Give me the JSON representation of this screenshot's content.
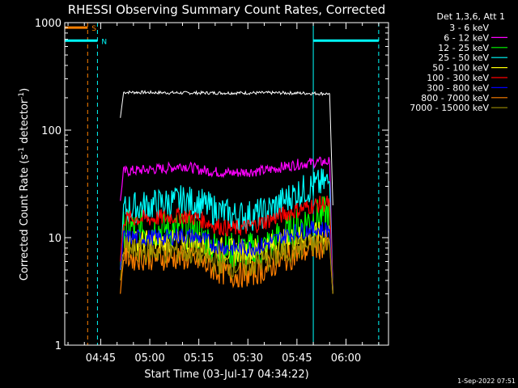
{
  "chart_data": {
    "type": "line",
    "title": "RHESSI Observing Summary Count Rates, Corrected",
    "xlabel": "Start Time (03-Jul-17 04:34:22)",
    "ylabel_parts": [
      "Corrected Count Rate (s",
      "-1",
      " detector",
      "-1",
      ")"
    ],
    "yscale": "log",
    "ylim": [
      1,
      1000
    ],
    "xlim": [
      "04:34",
      "06:13"
    ],
    "x_ticks": [
      "04:45",
      "05:00",
      "05:15",
      "05:30",
      "05:45",
      "06:00"
    ],
    "y_ticks": [
      "1",
      "10",
      "100",
      "1000"
    ],
    "legend_header": "Det 1,3,6, Att 1",
    "legend_position": "top-right",
    "series": [
      {
        "name": "3 - 6 keV",
        "color": "#000000",
        "x": [
          "04:51",
          "04:52",
          "04:55",
          "05:00",
          "05:10",
          "05:20",
          "05:30",
          "05:40",
          "05:50",
          "05:55",
          "05:56"
        ],
        "y": [
          130,
          225,
          225,
          224,
          222,
          222,
          222,
          222,
          220,
          218,
          20
        ]
      },
      {
        "name": "6 - 12 keV",
        "color": "#ff00ff",
        "x": [
          "04:51",
          "04:52",
          "04:55",
          "05:00",
          "05:05",
          "05:10",
          "05:15",
          "05:20",
          "05:25",
          "05:30",
          "05:35",
          "05:40",
          "05:45",
          "05:50",
          "05:55",
          "05:56"
        ],
        "y": [
          22,
          41,
          42,
          43,
          44,
          47,
          43,
          41,
          40,
          41,
          42,
          45,
          48,
          50,
          51,
          3
        ]
      },
      {
        "name": "12 - 25 keV",
        "color": "#00ff00",
        "x": [
          "04:51",
          "04:52",
          "04:55",
          "05:00",
          "05:05",
          "05:10",
          "05:15",
          "05:20",
          "05:25",
          "05:30",
          "05:35",
          "05:40",
          "05:45",
          "05:50",
          "05:55",
          "05:56"
        ],
        "y": [
          5,
          12,
          12,
          12,
          12,
          12,
          11,
          8,
          7.5,
          7.5,
          8,
          10,
          13,
          15,
          17,
          3
        ]
      },
      {
        "name": "25 - 50 keV",
        "color": "#00ffff",
        "x": [
          "04:51",
          "04:52",
          "04:55",
          "05:00",
          "05:05",
          "05:10",
          "05:15",
          "05:20",
          "05:25",
          "05:30",
          "05:35",
          "05:40",
          "05:45",
          "05:50",
          "05:55",
          "05:56"
        ],
        "y": [
          5,
          18,
          19,
          20,
          21,
          22,
          21,
          18,
          16,
          16,
          17,
          21,
          26,
          30,
          33,
          3
        ]
      },
      {
        "name": "50 - 100 keV",
        "color": "#ffff00",
        "x": [
          "04:51",
          "04:52",
          "04:55",
          "05:00",
          "05:05",
          "05:10",
          "05:15",
          "05:20",
          "05:25",
          "05:30",
          "05:35",
          "05:40",
          "05:45",
          "05:50",
          "05:55",
          "05:56"
        ],
        "y": [
          5,
          9,
          9,
          9,
          9,
          9,
          9,
          8,
          7.5,
          7.5,
          8,
          9,
          10,
          10.5,
          11,
          3
        ]
      },
      {
        "name": "100 - 300 keV",
        "color": "#ff0000",
        "x": [
          "04:51",
          "04:52",
          "04:55",
          "05:00",
          "05:05",
          "05:10",
          "05:15",
          "05:20",
          "05:25",
          "05:30",
          "05:35",
          "05:40",
          "05:45",
          "05:50",
          "05:55",
          "05:56"
        ],
        "y": [
          6,
          15,
          15,
          15,
          15.5,
          16,
          15,
          13,
          12,
          12.5,
          14,
          16,
          18,
          20,
          21,
          3
        ]
      },
      {
        "name": "300 - 800 keV",
        "color": "#0000ff",
        "x": [
          "04:51",
          "04:52",
          "04:55",
          "05:00",
          "05:05",
          "05:10",
          "05:15",
          "05:20",
          "05:25",
          "05:30",
          "05:35",
          "05:40",
          "05:45",
          "05:50",
          "05:55",
          "05:56"
        ],
        "y": [
          5,
          10,
          10,
          10,
          10,
          10.5,
          10,
          8.5,
          8,
          8,
          8.5,
          10,
          11.5,
          12,
          12,
          3
        ]
      },
      {
        "name": "800 - 7000 keV",
        "color": "#ff8000",
        "x": [
          "04:51",
          "04:52",
          "04:55",
          "05:00",
          "05:05",
          "05:10",
          "05:15",
          "05:20",
          "05:25",
          "05:30",
          "05:35",
          "05:40",
          "05:45",
          "05:50",
          "05:55",
          "05:56"
        ],
        "y": [
          3,
          7,
          6.5,
          6.5,
          6.5,
          6.5,
          6,
          5,
          4.5,
          4.5,
          5,
          6,
          7,
          8,
          8.5,
          3
        ]
      },
      {
        "name": "7000 - 15000 keV",
        "color": "#9a8a00",
        "x": [
          "04:51",
          "04:52",
          "04:55",
          "05:00",
          "05:05",
          "05:10",
          "05:15",
          "05:20",
          "05:25",
          "05:30",
          "05:35",
          "05:40",
          "05:45",
          "05:50",
          "05:55",
          "05:56"
        ],
        "y": [
          4,
          8,
          7.5,
          7.5,
          7.5,
          7.5,
          7,
          6,
          5.5,
          5.5,
          6,
          7,
          8,
          8.5,
          9,
          3
        ]
      }
    ],
    "annotations": [
      {
        "label": "S",
        "color": "#ff8000",
        "x_range": [
          "04:34",
          "04:41"
        ],
        "y": 900
      },
      {
        "label": "N",
        "color": "#00ffff",
        "x_range": [
          "04:34",
          "04:44"
        ],
        "y": 680
      },
      {
        "label": "",
        "color": "#00ffff",
        "x_range": [
          "05:50",
          "06:10"
        ],
        "y": 680
      }
    ],
    "vlines": [
      {
        "x": "04:34",
        "color": "#00ffff",
        "style": "solid"
      },
      {
        "x": "04:41",
        "color": "#ff8000",
        "style": "dashed"
      },
      {
        "x": "04:44",
        "color": "#00ffff",
        "style": "dashed"
      },
      {
        "x": "05:50",
        "color": "#00ffff",
        "style": "solid"
      },
      {
        "x": "06:10",
        "color": "#00ffff",
        "style": "dashed"
      }
    ]
  },
  "footer": {
    "timestamp": "1-Sep-2022 07:51"
  }
}
